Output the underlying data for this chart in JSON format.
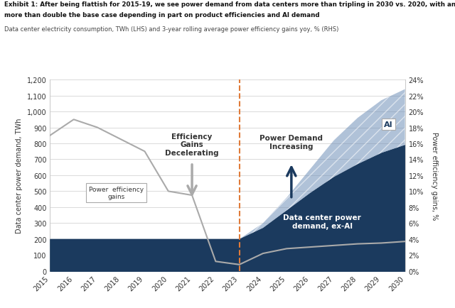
{
  "years": [
    2015,
    2016,
    2017,
    2018,
    2019,
    2020,
    2021,
    2022,
    2023,
    2024,
    2025,
    2026,
    2027,
    2028,
    2029,
    2030
  ],
  "ex_ai_demand": [
    200,
    200,
    200,
    200,
    200,
    200,
    200,
    200,
    200,
    270,
    380,
    490,
    590,
    670,
    740,
    790
  ],
  "ai_demand": [
    0,
    0,
    0,
    0,
    0,
    0,
    0,
    0,
    0,
    30,
    80,
    150,
    230,
    290,
    330,
    350
  ],
  "efficiency_gains_pct": [
    17.0,
    19.0,
    18.0,
    16.5,
    15.0,
    10.0,
    9.5,
    1.2,
    0.8,
    2.2,
    2.8,
    3.0,
    3.2,
    3.4,
    3.5,
    3.7
  ],
  "dark_blue": "#1b3a5e",
  "hatched_blue_face": "#6080a8",
  "grey_line": "#aaaaaa",
  "orange_dashed": "#e07b39",
  "bg_color": "#ffffff",
  "title_line1": "Exhibit 1: After being flattish for 2015-19, we see power demand from data centers more than tripling in 2030 vs. 2020, with an upside case",
  "title_line2": "more than double the base case depending in part on product efficiencies and AI demand",
  "subtitle": "Data center electricity consumption, TWh (LHS) and 3-year rolling average power efficiency gains yoy, % (RHS)",
  "ylim_left": [
    0,
    1200
  ],
  "ylim_right": [
    0,
    24
  ],
  "yticks_left": [
    0,
    100,
    200,
    300,
    400,
    500,
    600,
    700,
    800,
    900,
    1000,
    1100,
    1200
  ],
  "yticks_right": [
    0,
    2,
    4,
    6,
    8,
    10,
    12,
    14,
    16,
    18,
    20,
    22,
    24
  ],
  "ylabel_left": "Data center power demand, TWh",
  "ylabel_right": "Power efficiency gains, %"
}
